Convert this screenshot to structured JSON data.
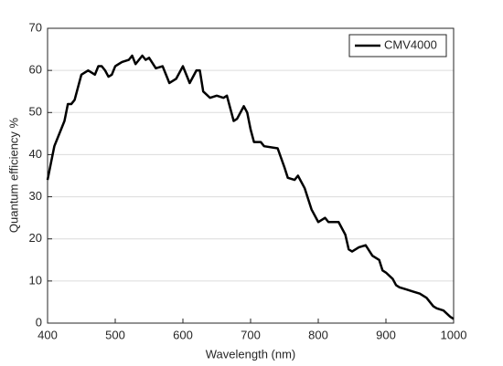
{
  "chart_data": {
    "type": "line",
    "xlabel": "Wavelength (nm)",
    "ylabel": "Quantum efficiency %",
    "xlim": [
      400,
      1000
    ],
    "ylim": [
      0,
      70
    ],
    "xticks": [
      400,
      500,
      600,
      700,
      800,
      900,
      1000
    ],
    "yticks": [
      0,
      10,
      20,
      30,
      40,
      50,
      60,
      70
    ],
    "grid": true,
    "legend": "upper-right",
    "x": [
      400,
      405,
      410,
      420,
      425,
      430,
      435,
      440,
      445,
      450,
      460,
      470,
      475,
      480,
      485,
      490,
      495,
      500,
      510,
      520,
      525,
      530,
      540,
      545,
      550,
      560,
      570,
      575,
      580,
      590,
      600,
      605,
      610,
      620,
      625,
      630,
      640,
      650,
      660,
      665,
      670,
      675,
      680,
      690,
      695,
      700,
      705,
      715,
      720,
      740,
      750,
      755,
      765,
      770,
      780,
      790,
      800,
      810,
      815,
      830,
      840,
      845,
      850,
      860,
      870,
      880,
      890,
      895,
      900,
      910,
      915,
      920,
      930,
      940,
      950,
      960,
      970,
      975,
      985,
      995,
      1000
    ],
    "series": [
      {
        "name": "CMV4000",
        "color": "#000000",
        "values": [
          34,
          38,
          42,
          46,
          48,
          52,
          52,
          53,
          56,
          59,
          60,
          59,
          61,
          61,
          60,
          58.5,
          59,
          61,
          62,
          62.5,
          63.5,
          61.5,
          63.5,
          62.5,
          63,
          60.5,
          61,
          59,
          57,
          58,
          61,
          59,
          57,
          60,
          60,
          55,
          53.5,
          54,
          53.5,
          54,
          51,
          48,
          48.5,
          51.5,
          50,
          46,
          43,
          43,
          42,
          41.5,
          37,
          34.5,
          34,
          35,
          32,
          27,
          24,
          25,
          24,
          24,
          21,
          17.5,
          17,
          18,
          18.5,
          16,
          15,
          12.5,
          12,
          10.5,
          9,
          8.5,
          8,
          7.5,
          7,
          6,
          4,
          3.5,
          3,
          1.5,
          1
        ]
      }
    ]
  }
}
